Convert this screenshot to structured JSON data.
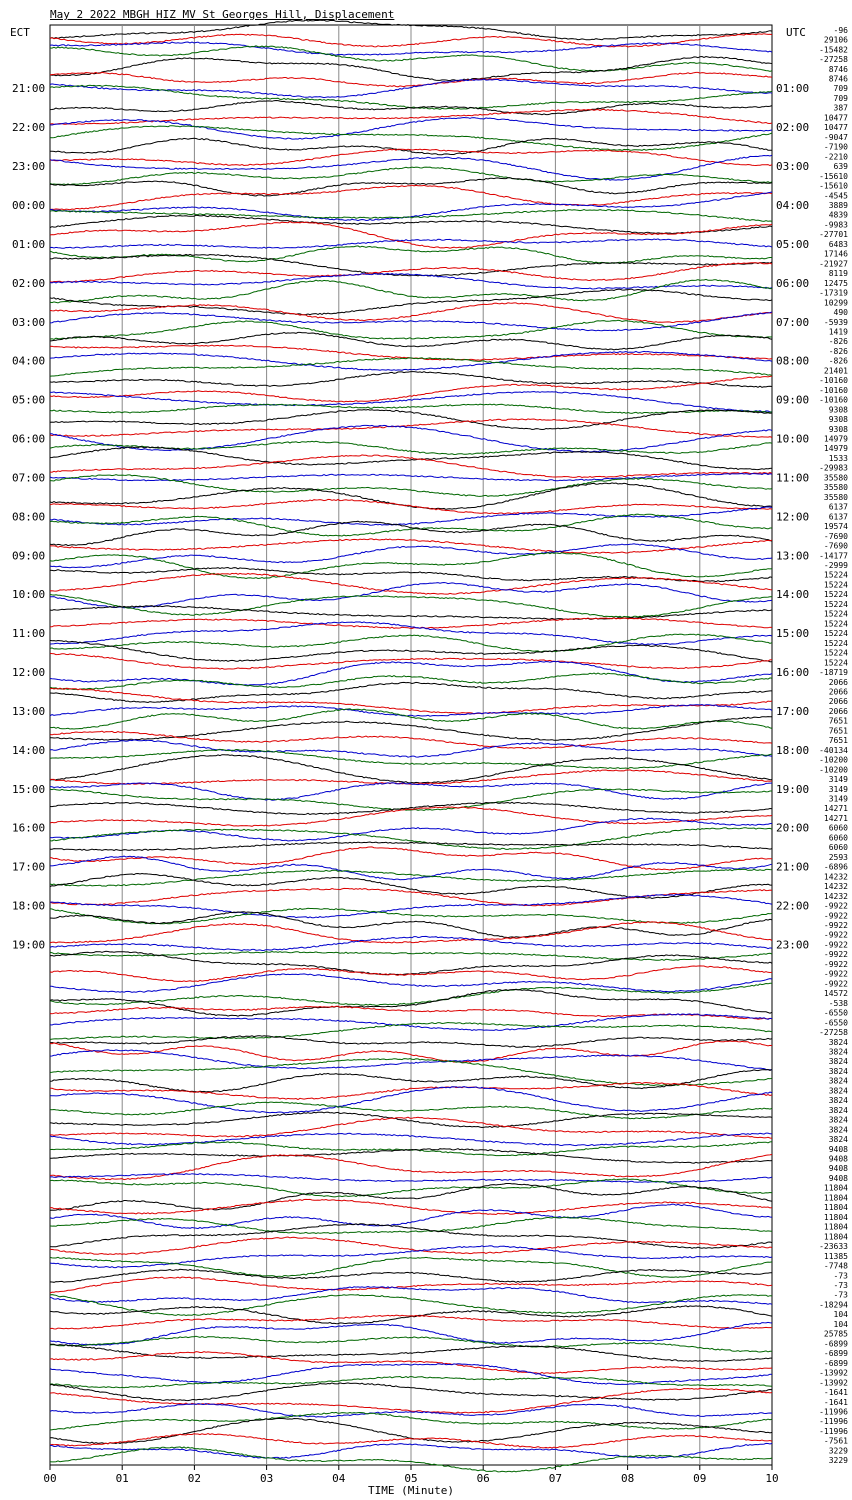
{
  "chart_data": {
    "type": "line",
    "title": "May  2 2022 MBGH HIZ MV St Georges Hill, Displacement",
    "left_zone_label": "ECT",
    "right_zone_label": "UTC",
    "xlabel": "TIME (Minute)",
    "x_ticks": [
      "00",
      "01",
      "02",
      "03",
      "04",
      "05",
      "06",
      "07",
      "08",
      "09",
      "10"
    ],
    "xlim": [
      0,
      10
    ],
    "grid": true,
    "rows_per_hour": 4,
    "left_time_labels": [
      "21:00",
      "22:00",
      "23:00",
      "00:00",
      "01:00",
      "02:00",
      "03:00",
      "04:00",
      "05:00",
      "06:00",
      "07:00",
      "08:00",
      "09:00",
      "10:00",
      "11:00",
      "12:00",
      "13:00",
      "14:00",
      "15:00",
      "16:00",
      "17:00",
      "18:00",
      "19:00"
    ],
    "right_time_labels": [
      "01:00",
      "02:00",
      "03:00",
      "04:00",
      "05:00",
      "06:00",
      "07:00",
      "08:00",
      "09:00",
      "10:00",
      "11:00",
      "12:00",
      "13:00",
      "14:00",
      "15:00",
      "16:00",
      "17:00",
      "18:00",
      "19:00",
      "20:00",
      "21:00",
      "22:00",
      "23:00"
    ],
    "trace_colors": [
      "#000000",
      "#dd0000",
      "#0000cc",
      "#006600"
    ],
    "trace_values": [
      "-96",
      "29106",
      "-15482",
      "-27258",
      "8746",
      "8746",
      "709",
      "709",
      "387",
      "10477",
      "10477",
      "-9047",
      "-7190",
      "-2210",
      "639",
      "-15610",
      "-15610",
      "-4545",
      "3889",
      "4839",
      "-9983",
      "-27701",
      "6483",
      "17146",
      "-21927",
      "8119",
      "12475",
      "-17319",
      "10299",
      "490",
      "-5939",
      "1419",
      "-826",
      "-826",
      "-826",
      "21401",
      "-10160",
      "-10160",
      "-10160",
      "9308",
      "9308",
      "9308",
      "14979",
      "14979",
      "1533",
      "-29983",
      "35580",
      "35580",
      "35580",
      "6137",
      "6137",
      "19574",
      "-7690",
      "-7690",
      "-14177",
      "-2999",
      "15224",
      "15224",
      "15224",
      "15224",
      "15224",
      "15224",
      "15224",
      "15224",
      "15224",
      "15224",
      "-18719",
      "2066",
      "2066",
      "2066",
      "2066",
      "7651",
      "7651",
      "7651",
      "-40134",
      "-10200",
      "-10200",
      "3149",
      "3149",
      "3149",
      "14271",
      "14271",
      "6060",
      "6060",
      "6060",
      "2593",
      "-6896",
      "14232",
      "14232",
      "14232",
      "-9922",
      "-9922",
      "-9922",
      "-9922",
      "-9922",
      "-9922",
      "-9922",
      "-9922",
      "-9922",
      "14572",
      "-538",
      "-6550",
      "-6550",
      "-27258",
      "3824",
      "3824",
      "3824",
      "3824",
      "3824",
      "3824",
      "3824",
      "3824",
      "3824",
      "3824",
      "3824",
      "9408",
      "9408",
      "9408",
      "9408",
      "11804",
      "11804",
      "11804",
      "11804",
      "11804",
      "11804",
      "-23633",
      "11385",
      "-7748",
      "-73",
      "-73",
      "-73",
      "-18294",
      "104",
      "104",
      "25785",
      "-6899",
      "-6899",
      "-6899",
      "-13992",
      "-13992",
      "-1641",
      "-1641",
      "-11996",
      "-11996",
      "-11996",
      "-7561",
      "3229",
      "3229"
    ]
  }
}
